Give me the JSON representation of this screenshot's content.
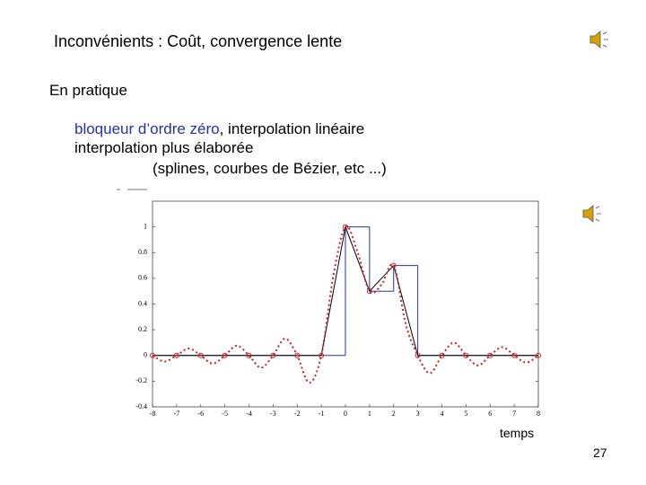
{
  "title": "Inconvénients : Coût, convergence lente",
  "section": "En pratique",
  "items": {
    "line1": {
      "blue": "bloqueur d’ordre zéro",
      "rest": ", interpolation linéaire"
    },
    "line2": "interpolation plus élaborée",
    "line3": "(splines, courbes de Bézier, etc ...)"
  },
  "page_number": "27",
  "chart_data": {
    "type": "line",
    "xlabel": "temps",
    "x": [
      -8,
      -7,
      -6,
      -5,
      -4,
      -3,
      -2,
      -1,
      0,
      1,
      2,
      3,
      4,
      5,
      6,
      7,
      8
    ],
    "xlim": [
      -8,
      8
    ],
    "xticks": [
      -8,
      -7,
      -6,
      -5,
      -4,
      -3,
      -2,
      -1,
      0,
      1,
      2,
      3,
      4,
      5,
      6,
      7,
      8
    ],
    "ylim": [
      -0.4,
      1.2
    ],
    "yticks": [
      -0.4,
      -0.2,
      0,
      0.2,
      0.4,
      0.6,
      0.8,
      1
    ],
    "series": [
      {
        "style": "samples",
        "color": "#cc2222",
        "values": [
          0,
          0,
          0,
          0,
          0,
          0,
          0,
          0,
          1,
          0.5,
          0.7,
          0,
          0,
          0,
          0,
          0,
          0
        ]
      },
      {
        "style": "step",
        "color": "#2233aa",
        "values": [
          0,
          0,
          0,
          0,
          0,
          0,
          0,
          0,
          1,
          0.5,
          0.7,
          0,
          0,
          0,
          0,
          0,
          0
        ]
      },
      {
        "style": "linear",
        "color": "#000000",
        "values": [
          0,
          0,
          0,
          0,
          0,
          0,
          0,
          0,
          1,
          0.5,
          0.7,
          0,
          0,
          0,
          0,
          0,
          0
        ]
      },
      {
        "style": "dotted",
        "color": "#cc2222",
        "x": [
          -8,
          -7.5,
          -7,
          -6.5,
          -6,
          -5.5,
          -5,
          -4.5,
          -4,
          -3.5,
          -3,
          -2.5,
          -2,
          -1.5,
          -1,
          -0.5,
          0,
          0.5,
          1,
          1.5,
          2,
          2.5,
          3,
          3.5,
          4,
          4.5,
          5,
          5.5,
          6,
          6.5,
          7,
          7.5,
          8
        ],
        "values": [
          0,
          -0.047,
          0,
          0.054,
          0,
          -0.063,
          0,
          0.076,
          0,
          -0.096,
          0,
          0.131,
          0,
          -0.212,
          0,
          0.62,
          1,
          0.806,
          0.5,
          0.552,
          0.7,
          0.244,
          0,
          -0.139,
          0,
          0.0995,
          0,
          -0.078,
          0,
          0.0646,
          0,
          -0.0551,
          0
        ]
      }
    ]
  }
}
